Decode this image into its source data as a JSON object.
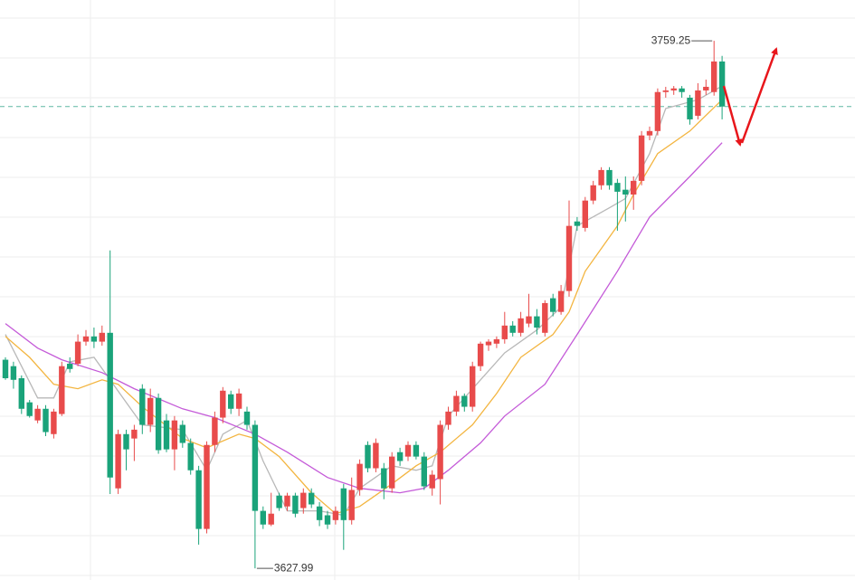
{
  "chart_data": {
    "type": "candlestick",
    "up_color": "#e84b4b",
    "down_color": "#1aa37a",
    "ylim": [
      3625.1,
      3769.4
    ],
    "open": [
      3679.9,
      3678.3,
      3675.3,
      3669.3,
      3664.8,
      3667.7,
      3661.4,
      3666.4,
      3678.9,
      3678.9,
      3684.4,
      3685.7,
      3684.4,
      3686.6,
      3647.9,
      3661.4,
      3660.3,
      3672.7,
      3663.7,
      3670.4,
      3664.8,
      3657.6,
      3663.7,
      3659.2,
      3652.4,
      3637.8,
      3658.7,
      3665.5,
      3671.3,
      3667.7,
      3667.0,
      3663.7,
      3642.3,
      3638.9,
      3646.1,
      3643.4,
      3646.1,
      3643.0,
      3646.8,
      3643.4,
      3641.2,
      3640.0,
      3647.9,
      3640.0,
      3647.5,
      3658.7,
      3652.9,
      3652.9,
      3647.9,
      3656.9,
      3655.8,
      3658.7,
      3655.8,
      3647.9,
      3650.2,
      3663.7,
      3667.0,
      3670.9,
      3668.2,
      3678.3,
      3683.5,
      3683.9,
      3685.0,
      3688.4,
      3686.6,
      3688.9,
      3690.7,
      3686.6,
      3695.2,
      3691.8,
      3697.0,
      3714.3,
      3712.7,
      3719.5,
      3723.3,
      3727.1,
      3723.9,
      3722.2,
      3721.0,
      3724.4,
      3735.7,
      3736.8,
      3746.5,
      3746.9,
      3747.4,
      3745.1,
      3740.6,
      3746.9,
      3746.5,
      3754.1
    ],
    "high": [
      3680.5,
      3679.4,
      3676.0,
      3669.9,
      3668.6,
      3668.6,
      3667.7,
      3679.4,
      3680.5,
      3686.2,
      3687.3,
      3687.9,
      3688.4,
      3707.1,
      3662.5,
      3662.5,
      3663.7,
      3673.8,
      3672.7,
      3671.5,
      3666.4,
      3665.9,
      3664.8,
      3660.3,
      3653.5,
      3659.6,
      3667.0,
      3673.1,
      3672.2,
      3672.7,
      3668.2,
      3664.8,
      3643.4,
      3646.8,
      3646.8,
      3646.8,
      3646.8,
      3647.9,
      3647.9,
      3644.5,
      3642.3,
      3643.4,
      3649.0,
      3650.6,
      3655.1,
      3659.6,
      3660.3,
      3654.2,
      3656.9,
      3658.0,
      3659.6,
      3659.6,
      3656.9,
      3652.4,
      3664.8,
      3668.2,
      3672.2,
      3671.5,
      3679.4,
      3684.4,
      3685.0,
      3685.7,
      3691.8,
      3689.5,
      3691.8,
      3696.3,
      3692.5,
      3694.7,
      3696.3,
      3698.5,
      3719.5,
      3715.4,
      3720.4,
      3724.4,
      3727.8,
      3727.8,
      3724.9,
      3725.5,
      3725.5,
      3736.8,
      3737.9,
      3747.4,
      3747.8,
      3748.0,
      3748.0,
      3745.8,
      3748.7,
      3749.6,
      3759.25,
      3755.5
    ],
    "low": [
      3674.9,
      3672.7,
      3666.4,
      3665.5,
      3664.1,
      3660.9,
      3660.3,
      3665.9,
      3676.7,
      3678.3,
      3683.4,
      3682.8,
      3683.4,
      3646.5,
      3646.5,
      3652.4,
      3654.7,
      3661.4,
      3661.9,
      3656.5,
      3656.9,
      3652.4,
      3658.0,
      3651.3,
      3633.9,
      3636.7,
      3656.9,
      3664.1,
      3666.4,
      3665.9,
      3662.5,
      3627.99,
      3637.8,
      3638.5,
      3642.3,
      3642.3,
      3640.7,
      3641.6,
      3643.0,
      3638.5,
      3637.8,
      3638.9,
      3632.6,
      3638.9,
      3646.1,
      3651.9,
      3651.9,
      3645.2,
      3646.8,
      3653.5,
      3654.7,
      3655.1,
      3647.5,
      3646.1,
      3643.9,
      3662.5,
      3665.9,
      3667.0,
      3667.0,
      3677.1,
      3682.1,
      3682.8,
      3683.9,
      3685.7,
      3685.7,
      3688.0,
      3686.2,
      3685.7,
      3690.7,
      3691.1,
      3695.6,
      3712.0,
      3711.8,
      3718.6,
      3722.2,
      3722.2,
      3712.0,
      3714.3,
      3717.2,
      3723.3,
      3734.5,
      3735.7,
      3745.1,
      3745.8,
      3745.1,
      3738.4,
      3739.7,
      3745.8,
      3745.6,
      3739.7
    ],
    "close": [
      3675.3,
      3674.9,
      3667.7,
      3665.9,
      3667.7,
      3661.9,
      3667.0,
      3678.3,
      3677.6,
      3684.4,
      3685.7,
      3684.4,
      3686.6,
      3650.6,
      3661.4,
      3657.6,
      3662.5,
      3663.7,
      3670.4,
      3657.4,
      3657.6,
      3664.8,
      3659.2,
      3652.4,
      3637.8,
      3658.7,
      3665.5,
      3672.2,
      3667.7,
      3671.5,
      3663.7,
      3642.3,
      3638.9,
      3641.6,
      3643.0,
      3646.1,
      3641.6,
      3646.8,
      3643.9,
      3640.0,
      3638.9,
      3642.3,
      3640.0,
      3647.5,
      3654.0,
      3652.9,
      3659.2,
      3647.9,
      3655.8,
      3654.7,
      3658.7,
      3655.8,
      3648.4,
      3651.3,
      3663.7,
      3667.0,
      3670.9,
      3668.2,
      3678.3,
      3683.9,
      3684.4,
      3685.0,
      3688.4,
      3686.6,
      3690.2,
      3690.7,
      3687.9,
      3694.0,
      3691.8,
      3697.0,
      3713.2,
      3713.2,
      3719.5,
      3723.3,
      3727.1,
      3723.3,
      3721.7,
      3721.0,
      3724.4,
      3735.7,
      3736.8,
      3746.5,
      3746.9,
      3747.4,
      3746.5,
      3739.7,
      3746.9,
      3747.8,
      3754.1,
      3742.9
    ],
    "series": [
      {
        "color": "#b8b8b8",
        "x": [
          0,
          2,
          4,
          6,
          8,
          11,
          13,
          15,
          17,
          22,
          25,
          27,
          30,
          32,
          35,
          39,
          42,
          44,
          48,
          51,
          53,
          55,
          59,
          62,
          66,
          69,
          71,
          75,
          77,
          80,
          82,
          86,
          89
        ],
        "values": [
          3686.2,
          3678.3,
          3670.4,
          3670.4,
          3679.4,
          3680.5,
          3674.9,
          3669.3,
          3663.7,
          3662.5,
          3652.4,
          3661.4,
          3664.8,
          3654.7,
          3642.3,
          3642.3,
          3641.2,
          3647.9,
          3653.5,
          3652.4,
          3653.5,
          3665.9,
          3674.9,
          3681.6,
          3687.3,
          3693.0,
          3713.2,
          3717.7,
          3720.0,
          3731.2,
          3742.4,
          3744.6,
          3748.0
        ]
      },
      {
        "color": "#f3b540",
        "x": [
          0,
          3,
          6,
          9,
          12,
          14,
          17,
          22,
          25,
          29,
          31,
          34,
          38,
          41,
          44,
          48,
          51,
          54,
          58,
          61,
          64,
          68,
          70,
          72,
          76,
          78,
          81,
          85,
          89
        ],
        "values": [
          3685.7,
          3680.5,
          3673.8,
          3672.7,
          3674.9,
          3673.8,
          3668.2,
          3660.3,
          3658.0,
          3661.4,
          3660.3,
          3655.8,
          3646.8,
          3641.6,
          3643.4,
          3649.0,
          3653.5,
          3656.9,
          3663.7,
          3671.5,
          3680.5,
          3686.2,
          3691.8,
          3701.9,
          3713.2,
          3721.0,
          3731.2,
          3736.8,
          3744.6
        ]
      },
      {
        "color": "#c45ad8",
        "x": [
          0,
          4,
          7,
          12,
          16,
          22,
          26,
          31,
          35,
          40,
          44,
          49,
          52,
          55,
          59,
          62,
          67,
          71,
          76,
          80,
          85,
          89
        ],
        "values": [
          3688.9,
          3682.8,
          3679.9,
          3676.7,
          3672.7,
          3667.7,
          3665.5,
          3661.4,
          3656.9,
          3650.6,
          3647.9,
          3646.8,
          3647.9,
          3652.4,
          3659.2,
          3665.9,
          3673.8,
          3686.2,
          3701.9,
          3715.4,
          3725.5,
          3733.9
        ]
      }
    ]
  }
}
